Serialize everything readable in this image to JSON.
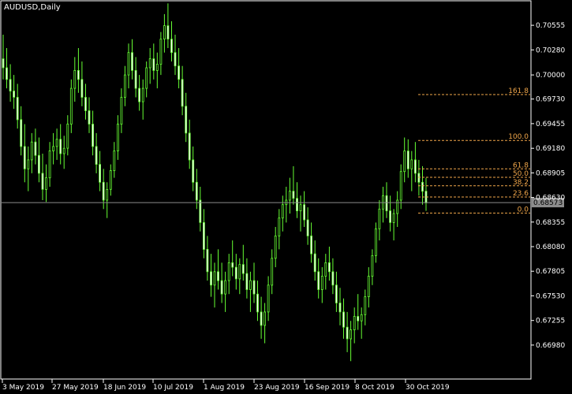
{
  "chart_data": {
    "type": "candlestick",
    "title": "AUDUSD,Daily",
    "ylim": [
      0.666,
      0.7082
    ],
    "y_ticks": [
      "0.70555",
      "0.70280",
      "0.70000",
      "0.69730",
      "0.69455",
      "0.69180",
      "0.68905",
      "0.68630",
      "0.68355",
      "0.68080",
      "0.67805",
      "0.67530",
      "0.67255",
      "0.66980"
    ],
    "x_ticks": [
      "3 May 2019",
      "27 May 2019",
      "18 Jun 2019",
      "10 Jul 2019",
      "1 Aug 2019",
      "23 Aug 2019",
      "16 Sep 2019",
      "8 Oct 2019",
      "30 Oct 2019"
    ],
    "current_price": "0.68573",
    "current_price_value": 0.68573,
    "fibonacci": {
      "levels": [
        {
          "label": "161.8",
          "price": 0.6978
        },
        {
          "label": "100.0",
          "price": 0.69268
        },
        {
          "label": "61.8",
          "price": 0.6895
        },
        {
          "label": "50.0",
          "price": 0.68855
        },
        {
          "label": "38.2",
          "price": 0.6876
        },
        {
          "label": "23.6",
          "price": 0.68635
        },
        {
          "label": "0.0",
          "price": 0.68455
        }
      ]
    },
    "candles": [
      [
        0.7018,
        0.7045,
        0.6995,
        0.7008
      ],
      [
        0.7008,
        0.703,
        0.6985,
        0.6995
      ],
      [
        0.6995,
        0.7012,
        0.697,
        0.6982
      ],
      [
        0.6982,
        0.7,
        0.6962,
        0.6975
      ],
      [
        0.6975,
        0.699,
        0.694,
        0.695
      ],
      [
        0.695,
        0.6965,
        0.691,
        0.692
      ],
      [
        0.692,
        0.6945,
        0.688,
        0.6895
      ],
      [
        0.6895,
        0.692,
        0.687,
        0.6905
      ],
      [
        0.6905,
        0.6935,
        0.689,
        0.6925
      ],
      [
        0.6925,
        0.694,
        0.69,
        0.691
      ],
      [
        0.691,
        0.693,
        0.688,
        0.689
      ],
      [
        0.689,
        0.6912,
        0.686,
        0.6872
      ],
      [
        0.6872,
        0.69,
        0.6858,
        0.6885
      ],
      [
        0.6885,
        0.6925,
        0.6875,
        0.6915
      ],
      [
        0.6915,
        0.6935,
        0.69,
        0.692
      ],
      [
        0.692,
        0.694,
        0.6905,
        0.6928
      ],
      [
        0.6928,
        0.6945,
        0.69,
        0.6912
      ],
      [
        0.6912,
        0.6932,
        0.6895,
        0.6918
      ],
      [
        0.6918,
        0.6955,
        0.691,
        0.6945
      ],
      [
        0.6945,
        0.6995,
        0.6935,
        0.6985
      ],
      [
        0.6985,
        0.702,
        0.697,
        0.7005
      ],
      [
        0.7005,
        0.703,
        0.698,
        0.6995
      ],
      [
        0.6995,
        0.7015,
        0.6965,
        0.6975
      ],
      [
        0.6975,
        0.699,
        0.695,
        0.696
      ],
      [
        0.696,
        0.6975,
        0.6935,
        0.6945
      ],
      [
        0.6945,
        0.696,
        0.691,
        0.692
      ],
      [
        0.692,
        0.6935,
        0.689,
        0.69
      ],
      [
        0.69,
        0.6915,
        0.687,
        0.688
      ],
      [
        0.688,
        0.6895,
        0.685,
        0.686
      ],
      [
        0.686,
        0.688,
        0.684,
        0.6872
      ],
      [
        0.6872,
        0.69,
        0.6865,
        0.6893
      ],
      [
        0.6893,
        0.6925,
        0.6885,
        0.6915
      ],
      [
        0.6915,
        0.6955,
        0.6905,
        0.6945
      ],
      [
        0.6945,
        0.6985,
        0.6935,
        0.6975
      ],
      [
        0.6975,
        0.701,
        0.6965,
        0.7
      ],
      [
        0.7,
        0.7035,
        0.6985,
        0.7025
      ],
      [
        0.7025,
        0.704,
        0.6995,
        0.7005
      ],
      [
        0.7005,
        0.702,
        0.6975,
        0.6985
      ],
      [
        0.6985,
        0.7,
        0.696,
        0.697
      ],
      [
        0.697,
        0.6995,
        0.695,
        0.6985
      ],
      [
        0.6985,
        0.7015,
        0.6975,
        0.7008
      ],
      [
        0.7008,
        0.703,
        0.699,
        0.7018
      ],
      [
        0.7018,
        0.7035,
        0.6995,
        0.7005
      ],
      [
        0.7005,
        0.7025,
        0.6985,
        0.7012
      ],
      [
        0.7012,
        0.7048,
        0.7,
        0.704
      ],
      [
        0.704,
        0.7068,
        0.7025,
        0.7055
      ],
      [
        0.7055,
        0.708,
        0.703,
        0.704
      ],
      [
        0.704,
        0.706,
        0.7015,
        0.7025
      ],
      [
        0.7025,
        0.7045,
        0.7,
        0.701
      ],
      [
        0.701,
        0.703,
        0.6985,
        0.6995
      ],
      [
        0.6995,
        0.701,
        0.6955,
        0.6965
      ],
      [
        0.6965,
        0.698,
        0.6925,
        0.6935
      ],
      [
        0.6935,
        0.695,
        0.6895,
        0.6905
      ],
      [
        0.6905,
        0.692,
        0.687,
        0.688
      ],
      [
        0.688,
        0.6895,
        0.685,
        0.686
      ],
      [
        0.686,
        0.6875,
        0.6825,
        0.6835
      ],
      [
        0.6835,
        0.685,
        0.6795,
        0.6805
      ],
      [
        0.6805,
        0.682,
        0.677,
        0.678
      ],
      [
        0.678,
        0.68,
        0.6752,
        0.6765
      ],
      [
        0.6765,
        0.679,
        0.674,
        0.678
      ],
      [
        0.678,
        0.6805,
        0.676,
        0.677
      ],
      [
        0.677,
        0.679,
        0.6745,
        0.6755
      ],
      [
        0.6755,
        0.678,
        0.6735,
        0.677
      ],
      [
        0.677,
        0.68,
        0.6755,
        0.679
      ],
      [
        0.679,
        0.6815,
        0.6775,
        0.6785
      ],
      [
        0.6785,
        0.68,
        0.676,
        0.6772
      ],
      [
        0.6772,
        0.6795,
        0.6755,
        0.6788
      ],
      [
        0.6788,
        0.681,
        0.677,
        0.6778
      ],
      [
        0.6778,
        0.6795,
        0.675,
        0.676
      ],
      [
        0.676,
        0.678,
        0.6735,
        0.677
      ],
      [
        0.677,
        0.679,
        0.6745,
        0.6755
      ],
      [
        0.6755,
        0.677,
        0.6725,
        0.6735
      ],
      [
        0.6735,
        0.6752,
        0.6705,
        0.672
      ],
      [
        0.672,
        0.6745,
        0.67,
        0.6735
      ],
      [
        0.6735,
        0.6775,
        0.6725,
        0.6765
      ],
      [
        0.6765,
        0.6805,
        0.6755,
        0.6795
      ],
      [
        0.6795,
        0.683,
        0.6785,
        0.682
      ],
      [
        0.682,
        0.685,
        0.6805,
        0.684
      ],
      [
        0.684,
        0.6865,
        0.6825,
        0.6855
      ],
      [
        0.6855,
        0.6875,
        0.6835,
        0.686
      ],
      [
        0.686,
        0.6885,
        0.6845,
        0.687
      ],
      [
        0.687,
        0.6898,
        0.6855,
        0.6862
      ],
      [
        0.6862,
        0.688,
        0.684,
        0.6848
      ],
      [
        0.6848,
        0.6865,
        0.6825,
        0.6855
      ],
      [
        0.6855,
        0.687,
        0.683,
        0.6838
      ],
      [
        0.6838,
        0.6852,
        0.681,
        0.682
      ],
      [
        0.682,
        0.6835,
        0.679,
        0.68
      ],
      [
        0.68,
        0.6815,
        0.677,
        0.678
      ],
      [
        0.678,
        0.6795,
        0.675,
        0.676
      ],
      [
        0.676,
        0.6785,
        0.6745,
        0.6775
      ],
      [
        0.6775,
        0.68,
        0.676,
        0.679
      ],
      [
        0.679,
        0.6808,
        0.677,
        0.678
      ],
      [
        0.678,
        0.6795,
        0.6755,
        0.6765
      ],
      [
        0.6765,
        0.678,
        0.6735,
        0.6745
      ],
      [
        0.6745,
        0.6762,
        0.672,
        0.6735
      ],
      [
        0.6735,
        0.675,
        0.6705,
        0.6718
      ],
      [
        0.6718,
        0.6735,
        0.669,
        0.6705
      ],
      [
        0.6705,
        0.6725,
        0.668,
        0.6715
      ],
      [
        0.6715,
        0.674,
        0.67,
        0.673
      ],
      [
        0.673,
        0.6755,
        0.6715,
        0.6725
      ],
      [
        0.6725,
        0.674,
        0.6705,
        0.6732
      ],
      [
        0.6732,
        0.676,
        0.672,
        0.6752
      ],
      [
        0.6752,
        0.6785,
        0.674,
        0.6775
      ],
      [
        0.6775,
        0.6805,
        0.6765,
        0.6798
      ],
      [
        0.6798,
        0.6835,
        0.679,
        0.6828
      ],
      [
        0.6828,
        0.686,
        0.6815,
        0.685
      ],
      [
        0.685,
        0.6875,
        0.6835,
        0.6865
      ],
      [
        0.6865,
        0.688,
        0.684,
        0.6848
      ],
      [
        0.6848,
        0.6865,
        0.6825,
        0.6835
      ],
      [
        0.6835,
        0.685,
        0.6815,
        0.6845
      ],
      [
        0.6845,
        0.687,
        0.683,
        0.686
      ],
      [
        0.686,
        0.69,
        0.685,
        0.6892
      ],
      [
        0.6892,
        0.693,
        0.688,
        0.6915
      ],
      [
        0.6915,
        0.6928,
        0.6885,
        0.6895
      ],
      [
        0.6895,
        0.6915,
        0.687,
        0.6905
      ],
      [
        0.6905,
        0.6925,
        0.688,
        0.689
      ],
      [
        0.689,
        0.6905,
        0.6865,
        0.688
      ],
      [
        0.688,
        0.6898,
        0.6855,
        0.687
      ],
      [
        0.687,
        0.6885,
        0.6848,
        0.6857
      ]
    ]
  }
}
